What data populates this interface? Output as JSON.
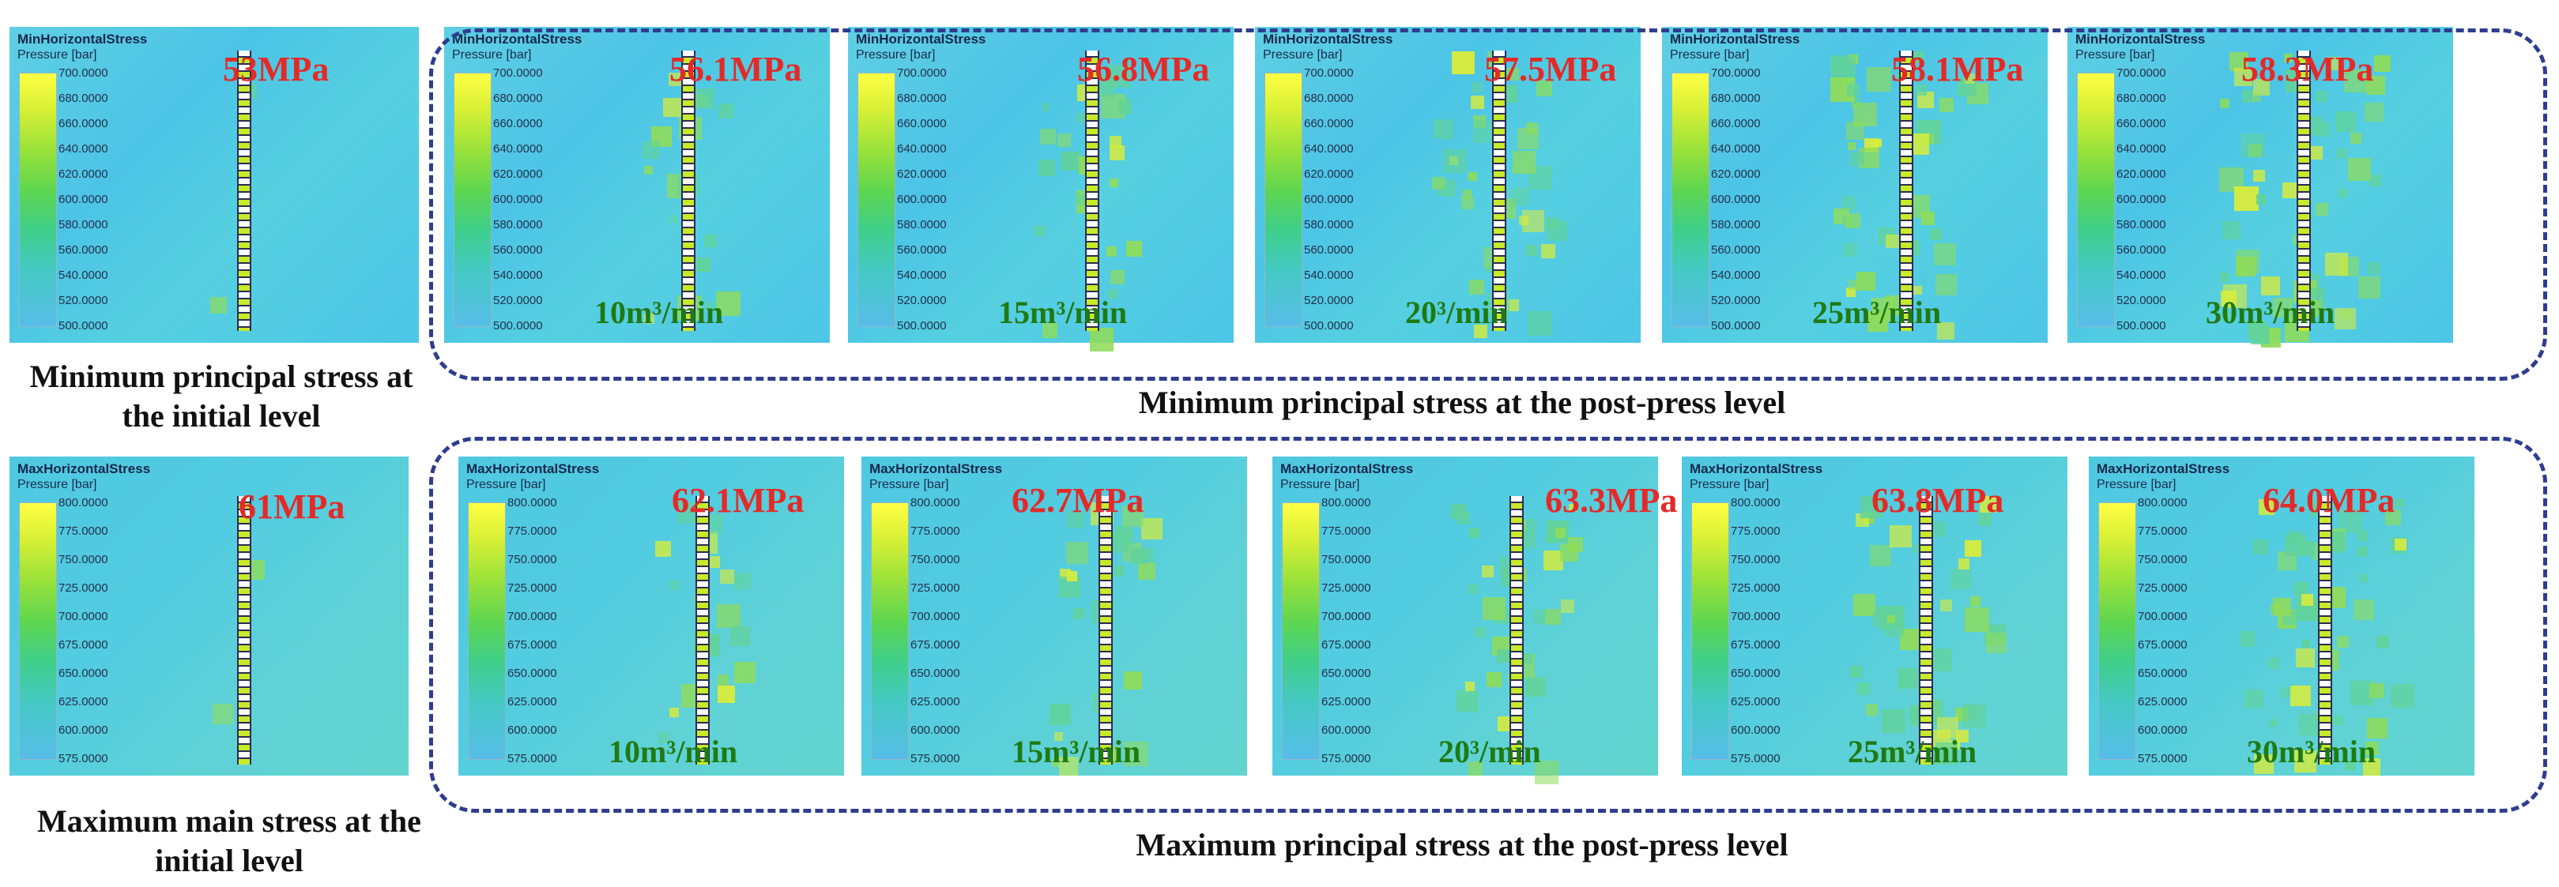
{
  "min_row": {
    "colorbar_title": "MinHorizontalStress",
    "colorbar_unit": "Pressure [bar]",
    "colorbar_ticks": [
      "700.0000",
      "680.0000",
      "660.0000",
      "640.0000",
      "620.0000",
      "600.0000",
      "580.0000",
      "560.0000",
      "540.0000",
      "520.0000",
      "500.0000"
    ],
    "panels": [
      {
        "value_label": "53MPa",
        "rate_label": ""
      },
      {
        "value_label": "56.1MPa",
        "rate_label": "10m³/min"
      },
      {
        "value_label": "56.8MPa",
        "rate_label": "15m³/min"
      },
      {
        "value_label": "57.5MPa",
        "rate_label": "20³/min"
      },
      {
        "value_label": "58.1MPa",
        "rate_label": "25m³/min"
      },
      {
        "value_label": "58.3MPa",
        "rate_label": "30m³/min"
      }
    ],
    "initial_caption": "Minimum principal stress at the initial level",
    "group_caption": "Minimum principal stress at the post-press level"
  },
  "max_row": {
    "colorbar_title": "MaxHorizontalStress",
    "colorbar_unit": "Pressure [bar]",
    "colorbar_ticks": [
      "800.0000",
      "775.0000",
      "750.0000",
      "725.0000",
      "700.0000",
      "675.0000",
      "650.0000",
      "625.0000",
      "600.0000",
      "575.0000"
    ],
    "panels": [
      {
        "value_label": "61MPa",
        "rate_label": ""
      },
      {
        "value_label": "62.1MPa",
        "rate_label": "10m³/min"
      },
      {
        "value_label": "62.7MPa",
        "rate_label": "15m³/min"
      },
      {
        "value_label": "63.3MPa",
        "rate_label": "20³/min"
      },
      {
        "value_label": "63.8MPa",
        "rate_label": "25m³/min"
      },
      {
        "value_label": "64.0MPa",
        "rate_label": "30m³/min"
      }
    ],
    "initial_caption": "Maximum main stress at the initial level",
    "group_caption": "Maximum principal stress at the post-press level"
  },
  "colors": {
    "value_label": "#e42a28",
    "rate_label": "#1f7a12",
    "group_border": "#2e3d8f",
    "field_base": "#4cc4e6",
    "field_high": "#c7ea2a"
  }
}
